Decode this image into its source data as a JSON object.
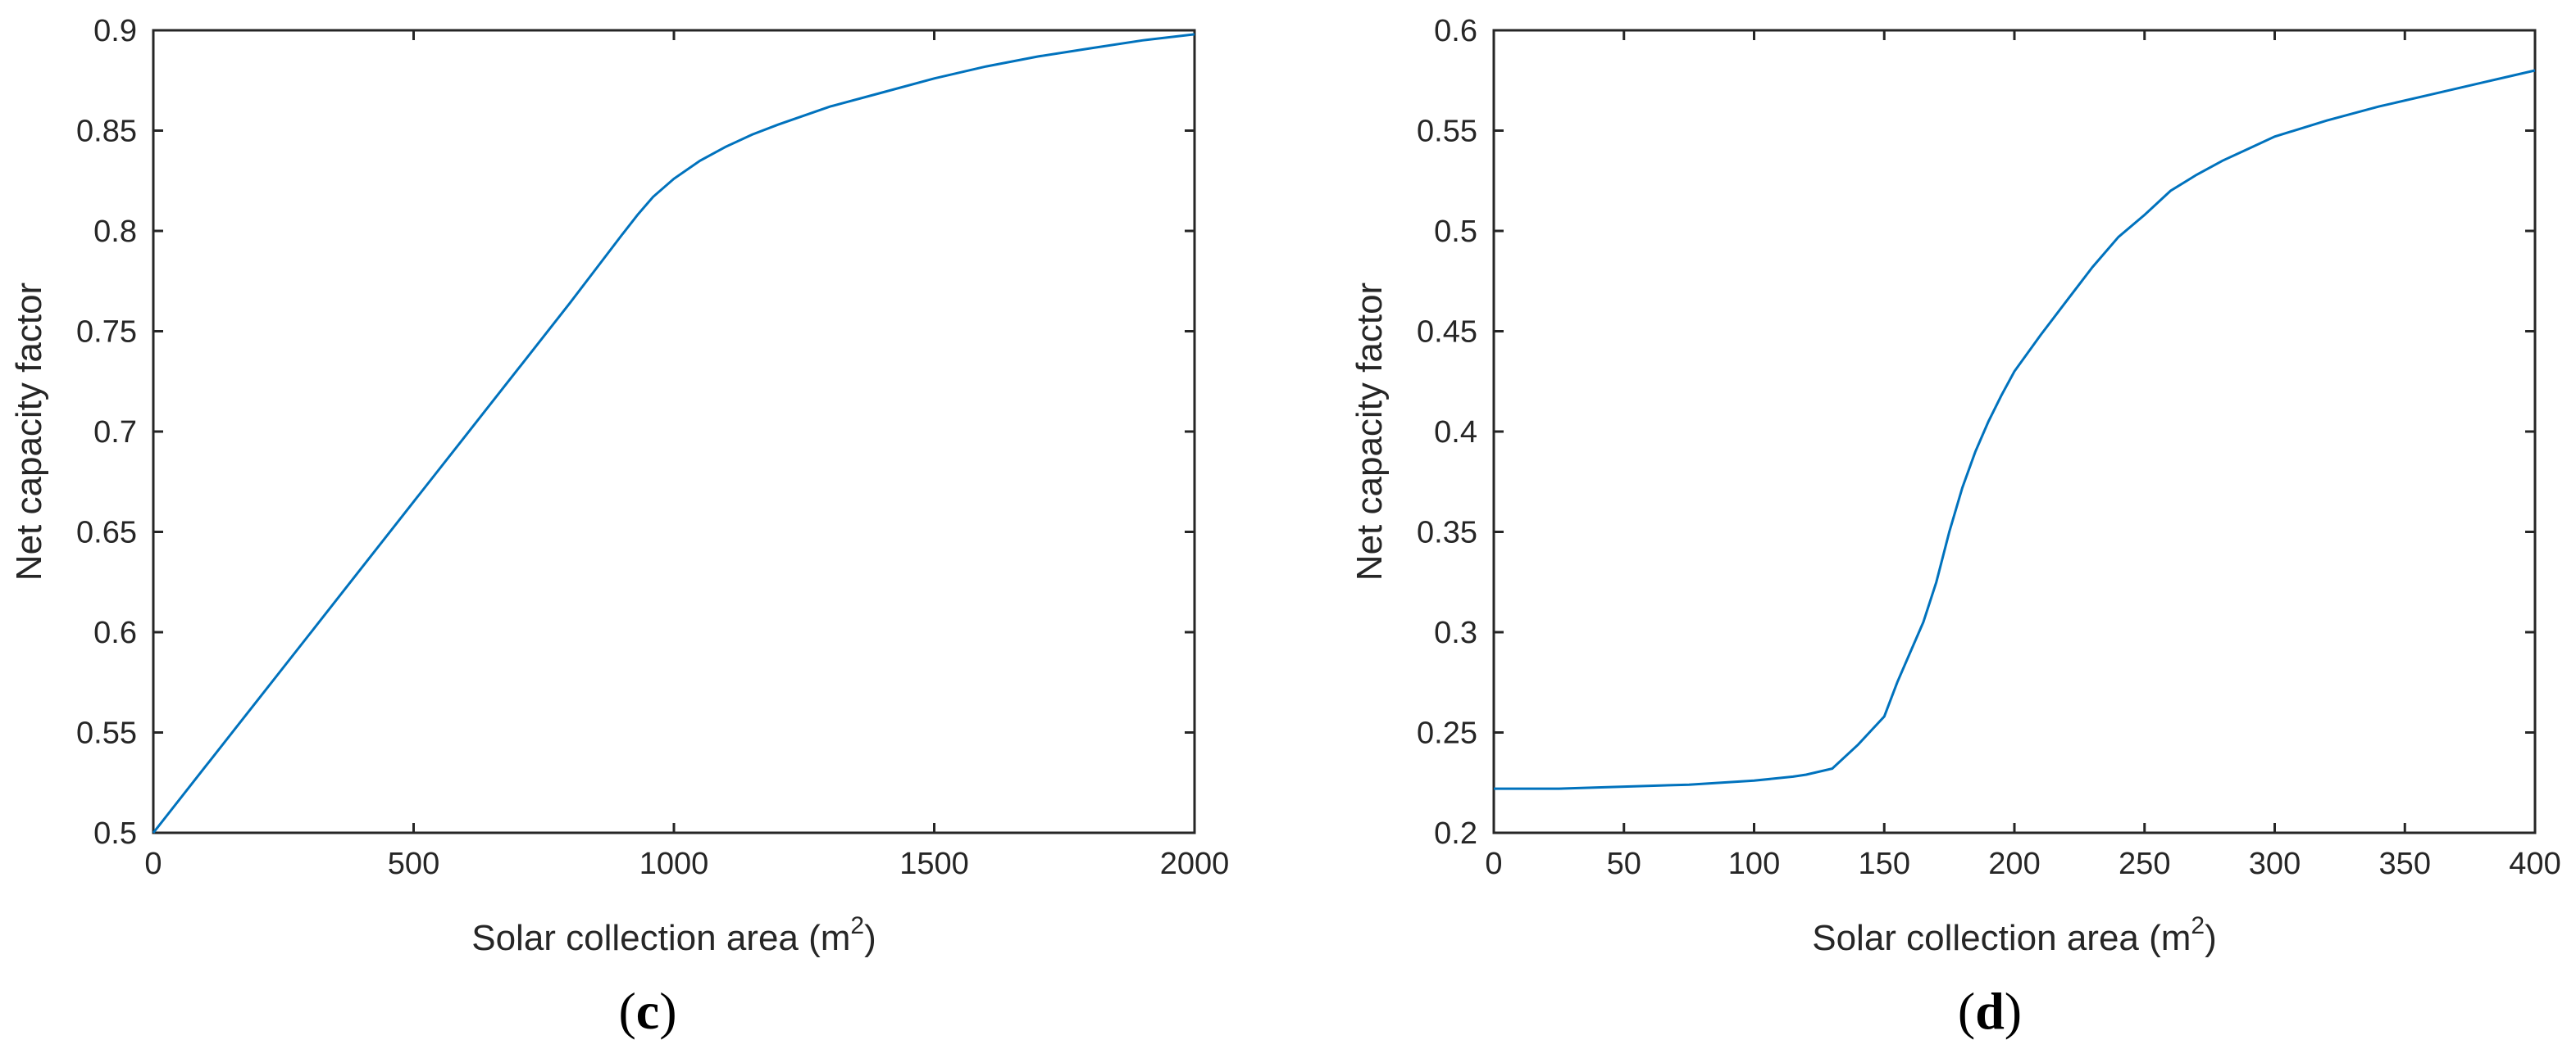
{
  "chart_data": [
    {
      "type": "line",
      "panel_label": "c",
      "xlabel": "Solar collection area (m",
      "xlabel_sup": "2",
      "xlabel_tail": ")",
      "ylabel": "Net capacity factor",
      "xlim": [
        0,
        2000
      ],
      "ylim": [
        0.5,
        0.9
      ],
      "xticks": [
        "0",
        "500",
        "1000",
        "1500",
        "2000"
      ],
      "yticks": [
        "0.5",
        "0.55",
        "0.6",
        "0.65",
        "0.7",
        "0.75",
        "0.8",
        "0.85",
        "0.9"
      ],
      "line_color": "#0072BD",
      "series": [
        {
          "x": [
            0,
            100,
            200,
            300,
            400,
            500,
            600,
            700,
            800,
            850,
            900,
            930,
            960,
            1000,
            1050,
            1100,
            1150,
            1200,
            1300,
            1400,
            1500,
            1600,
            1700,
            1800,
            1900,
            2000
          ],
          "values": [
            0.5,
            0.533,
            0.566,
            0.599,
            0.632,
            0.665,
            0.698,
            0.731,
            0.764,
            0.781,
            0.798,
            0.808,
            0.817,
            0.826,
            0.835,
            0.842,
            0.848,
            0.853,
            0.862,
            0.869,
            0.876,
            0.882,
            0.887,
            0.891,
            0.895,
            0.898
          ]
        }
      ]
    },
    {
      "type": "line",
      "panel_label": "d",
      "xlabel": "Solar collection area (m",
      "xlabel_sup": "2",
      "xlabel_tail": ")",
      "ylabel": "Net capacity factor",
      "xlim": [
        0,
        400
      ],
      "ylim": [
        0.2,
        0.6
      ],
      "xticks": [
        "0",
        "50",
        "100",
        "150",
        "200",
        "250",
        "300",
        "350",
        "400"
      ],
      "yticks": [
        "0.2",
        "0.25",
        "0.3",
        "0.35",
        "0.4",
        "0.45",
        "0.5",
        "0.55",
        "0.6"
      ],
      "line_color": "#0072BD",
      "series": [
        {
          "x": [
            0,
            25,
            50,
            75,
            100,
            115,
            120,
            130,
            140,
            150,
            155,
            160,
            165,
            170,
            175,
            180,
            185,
            190,
            195,
            200,
            210,
            220,
            230,
            240,
            250,
            260,
            270,
            280,
            290,
            300,
            320,
            340,
            360,
            380,
            400
          ],
          "values": [
            0.222,
            0.222,
            0.223,
            0.224,
            0.226,
            0.228,
            0.229,
            0.232,
            0.244,
            0.258,
            0.275,
            0.29,
            0.305,
            0.325,
            0.35,
            0.372,
            0.39,
            0.405,
            0.418,
            0.43,
            0.448,
            0.465,
            0.482,
            0.497,
            0.508,
            0.52,
            0.528,
            0.535,
            0.541,
            0.547,
            0.555,
            0.562,
            0.568,
            0.574,
            0.58
          ]
        }
      ]
    }
  ]
}
